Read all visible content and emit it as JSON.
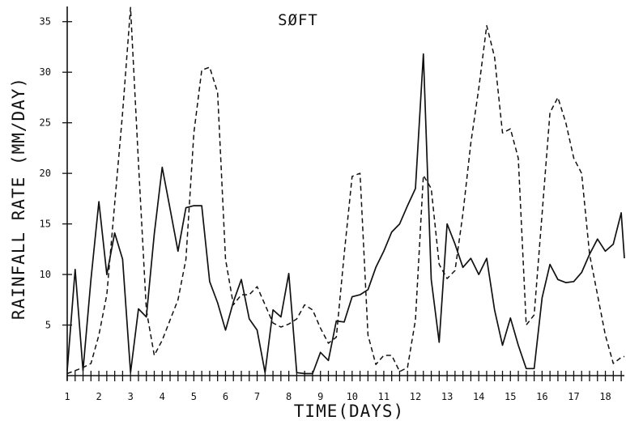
{
  "chart_data": {
    "type": "line",
    "title": "SØFT",
    "xlabel": "TIME(DAYS)",
    "ylabel": "RAINFALL RATE (MM/DAY)",
    "xlim": [
      1,
      18.6
    ],
    "ylim": [
      0,
      36.5
    ],
    "x_ticks": [
      1,
      2,
      3,
      4,
      5,
      6,
      7,
      8,
      9,
      10,
      11,
      12,
      13,
      14,
      15,
      16,
      17,
      18
    ],
    "y_ticks": [
      5,
      10,
      15,
      20,
      25,
      30,
      35
    ],
    "x_minor_tick_step": 0.25,
    "grid": false,
    "series": [
      {
        "style": "solid",
        "x": [
          1.0,
          1.25,
          1.5,
          1.75,
          2.0,
          2.25,
          2.5,
          2.75,
          3.0,
          3.25,
          3.5,
          3.75,
          4.0,
          4.25,
          4.5,
          4.75,
          5.0,
          5.25,
          5.5,
          5.75,
          6.0,
          6.25,
          6.5,
          6.75,
          7.0,
          7.25,
          7.5,
          7.75,
          8.0,
          8.25,
          8.5,
          8.75,
          9.0,
          9.25,
          9.5,
          9.75,
          10.0,
          10.25,
          10.5,
          10.75,
          11.0,
          11.25,
          11.5,
          11.75,
          12.0,
          12.25,
          12.5,
          12.75,
          13.0,
          13.25,
          13.5,
          13.75,
          14.0,
          14.25,
          14.5,
          14.75,
          15.0,
          15.25,
          15.5,
          15.75,
          16.0,
          16.25,
          16.5,
          16.75,
          17.0,
          17.25,
          17.5,
          17.75,
          18.0,
          18.25,
          18.5,
          18.6
        ],
        "y": [
          0.5,
          10.5,
          0.5,
          9.5,
          17.2,
          10.0,
          14.1,
          11.5,
          0.3,
          6.6,
          5.8,
          14.0,
          20.6,
          16.5,
          12.3,
          16.6,
          16.8,
          16.8,
          9.3,
          7.2,
          4.5,
          7.3,
          9.5,
          5.6,
          4.5,
          0.3,
          6.5,
          5.8,
          10.1,
          0.3,
          0.2,
          0.2,
          2.3,
          1.5,
          5.4,
          5.3,
          7.8,
          8.0,
          8.5,
          10.7,
          12.3,
          14.2,
          15.0,
          16.8,
          18.5,
          31.8,
          9.5,
          3.3,
          15.0,
          13.0,
          10.7,
          11.6,
          10.0,
          11.6,
          6.5,
          3.0,
          5.7,
          3.0,
          0.7,
          0.7,
          7.7,
          11.0,
          9.5,
          9.2,
          9.3,
          10.2,
          12.0,
          13.5,
          12.3,
          13.0,
          16.1,
          11.6
        ]
      },
      {
        "style": "dashed",
        "x": [
          1.0,
          1.25,
          1.5,
          1.75,
          2.0,
          2.25,
          2.5,
          2.75,
          3.0,
          3.25,
          3.5,
          3.75,
          4.0,
          4.25,
          4.5,
          4.75,
          5.0,
          5.25,
          5.5,
          5.75,
          6.0,
          6.25,
          6.5,
          6.75,
          7.0,
          7.25,
          7.5,
          7.75,
          8.0,
          8.25,
          8.5,
          8.75,
          9.0,
          9.25,
          9.5,
          9.75,
          10.0,
          10.25,
          10.5,
          10.75,
          11.0,
          11.25,
          11.5,
          11.75,
          12.0,
          12.25,
          12.5,
          12.75,
          13.0,
          13.25,
          13.5,
          13.75,
          14.0,
          14.25,
          14.5,
          14.75,
          15.0,
          15.25,
          15.5,
          15.75,
          16.0,
          16.25,
          16.5,
          16.75,
          17.0,
          17.25,
          17.5,
          17.75,
          18.0,
          18.25,
          18.5,
          18.6
        ],
        "y": [
          0.2,
          0.5,
          0.8,
          1.2,
          4.0,
          8.0,
          17.0,
          26.0,
          36.4,
          21.0,
          6.5,
          2.0,
          3.5,
          5.5,
          7.5,
          11.5,
          24.0,
          30.2,
          30.5,
          28.0,
          11.5,
          7.0,
          8.0,
          8.0,
          8.8,
          7.0,
          5.2,
          4.8,
          5.1,
          5.6,
          7.0,
          6.5,
          4.7,
          3.2,
          3.8,
          12.0,
          19.7,
          20.0,
          4.0,
          1.1,
          2.0,
          2.0,
          0.4,
          0.8,
          5.5,
          19.8,
          18.5,
          11.0,
          9.6,
          10.4,
          16.0,
          23.0,
          28.4,
          34.6,
          31.5,
          24.0,
          24.4,
          21.5,
          5.0,
          6.0,
          16.0,
          26.0,
          27.5,
          25.0,
          21.5,
          20.0,
          12.0,
          8.0,
          4.0,
          1.2,
          1.8,
          1.9
        ]
      }
    ]
  }
}
